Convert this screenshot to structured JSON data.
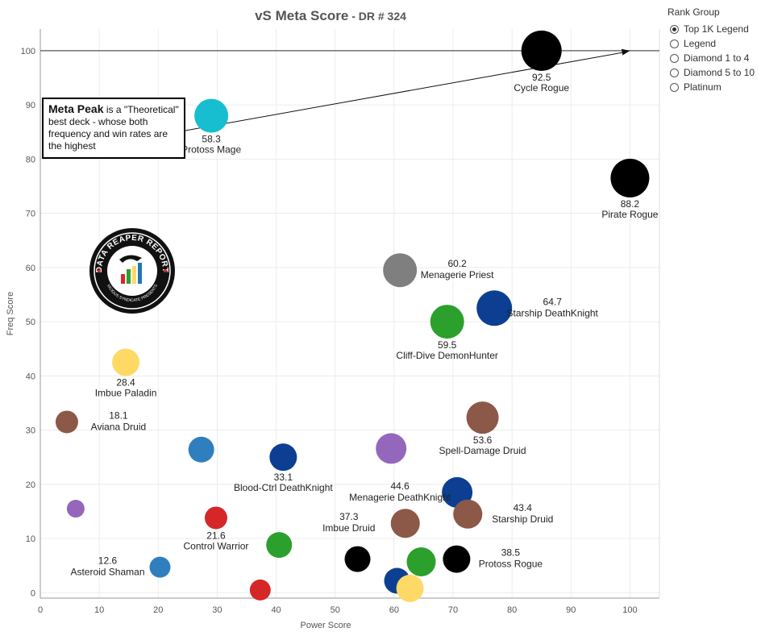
{
  "title": "vS Meta Score",
  "subtitle": "DR # 324",
  "legend": {
    "title": "Rank Group",
    "options": [
      {
        "label": "Top 1K Legend",
        "checked": true
      },
      {
        "label": "Legend",
        "checked": false
      },
      {
        "label": "Diamond 1 to 4",
        "checked": false
      },
      {
        "label": "Diamond 5 to 10",
        "checked": false
      },
      {
        "label": "Platinum",
        "checked": false
      }
    ]
  },
  "annotation": {
    "highlight": "Meta Peak",
    "text": " is a \"Theoretical\" best deck - whose both frequency and win rates are the highest"
  },
  "logo": {
    "top_text": "DATA REAPER REPORT",
    "bottom_text": "VICIOUS SYNDICATE PRESENTS"
  },
  "colors": {
    "black": "#000000",
    "brown": "#8c5848",
    "navy": "#0c3f91",
    "blue": "#2f7fbf",
    "cyan": "#17becf",
    "gray": "#7f7f7f",
    "green": "#2ca02c",
    "purple": "#9467bd",
    "yellow": "#ffd966",
    "red": "#d62728"
  },
  "chart_data": {
    "type": "scatter",
    "title": "vS Meta Score - DR # 324",
    "xlabel": "Power Score",
    "ylabel": "Freq Score",
    "xlim": [
      0,
      105
    ],
    "ylim": [
      -1,
      104
    ],
    "xticks": [
      0,
      10,
      20,
      30,
      40,
      50,
      60,
      70,
      80,
      90,
      100
    ],
    "yticks": [
      0,
      10,
      20,
      30,
      40,
      50,
      60,
      70,
      80,
      90,
      100
    ],
    "grid": true,
    "reference_line_y": 100,
    "meta_peak": {
      "x": 100,
      "y": 100
    },
    "points": [
      {
        "x": 85,
        "y": 100,
        "size": 25,
        "color": "black",
        "label": "Cycle Rogue",
        "score": "92.5",
        "pos": "below"
      },
      {
        "x": 100,
        "y": 76.5,
        "size": 24,
        "color": "black",
        "label": "Pirate Rogue",
        "score": "88.2",
        "pos": "below"
      },
      {
        "x": 29,
        "y": 88,
        "size": 21,
        "color": "cyan",
        "label": "Protoss Mage",
        "score": "58.3",
        "pos": "below"
      },
      {
        "x": 61,
        "y": 59.5,
        "size": 21,
        "color": "gray",
        "label": "Menagerie Priest",
        "score": "60.2",
        "pos": "right"
      },
      {
        "x": 77,
        "y": 52.5,
        "size": 22,
        "color": "navy",
        "label": "Starship DeathKnight",
        "score": "64.7",
        "pos": "right"
      },
      {
        "x": 69,
        "y": 50,
        "size": 21,
        "color": "green",
        "label": "Cliff-Dive DemonHunter",
        "score": "59.5",
        "pos": "below"
      },
      {
        "x": 14.5,
        "y": 42.5,
        "size": 17,
        "color": "yellow",
        "label": "Imbue Paladin",
        "score": "28.4",
        "pos": "below"
      },
      {
        "x": 4.5,
        "y": 31.5,
        "size": 14,
        "color": "brown",
        "label": "Aviana Druid",
        "score": "18.1",
        "pos": "right"
      },
      {
        "x": 75,
        "y": 32.3,
        "size": 20,
        "color": "brown",
        "label": "Spell-Damage Druid",
        "score": "53.6",
        "pos": "below"
      },
      {
        "x": 27.3,
        "y": 26.4,
        "size": 16,
        "color": "blue",
        "label": "",
        "score": "",
        "pos": "none"
      },
      {
        "x": 41.2,
        "y": 25,
        "size": 17,
        "color": "navy",
        "label": "Blood-Ctrl DeathKnight",
        "score": "33.1",
        "pos": "below"
      },
      {
        "x": 59.5,
        "y": 26.6,
        "size": 19,
        "color": "purple",
        "label": "",
        "score": "",
        "pos": "none"
      },
      {
        "x": 70.7,
        "y": 18.5,
        "size": 19,
        "color": "navy",
        "label": "Menagerie DeathKnight",
        "score": "44.6",
        "pos": "left"
      },
      {
        "x": 6,
        "y": 15.5,
        "size": 11,
        "color": "purple",
        "label": "",
        "score": "",
        "pos": "none"
      },
      {
        "x": 29.8,
        "y": 13.8,
        "size": 14,
        "color": "red",
        "label": "Control Warrior",
        "score": "21.6",
        "pos": "below"
      },
      {
        "x": 61.9,
        "y": 12.8,
        "size": 18,
        "color": "brown",
        "label": "Imbue Druid",
        "score": "37.3",
        "pos": "left"
      },
      {
        "x": 72.5,
        "y": 14.5,
        "size": 18,
        "color": "brown",
        "label": "Starship Druid",
        "score": "43.4",
        "pos": "right"
      },
      {
        "x": 40.5,
        "y": 8.8,
        "size": 16,
        "color": "green",
        "label": "",
        "score": "",
        "pos": "none"
      },
      {
        "x": 20.3,
        "y": 4.7,
        "size": 13,
        "color": "blue",
        "label": "Asteroid Shaman",
        "score": "12.6",
        "pos": "left"
      },
      {
        "x": 53.8,
        "y": 6.2,
        "size": 16,
        "color": "black",
        "label": "",
        "score": "",
        "pos": "none"
      },
      {
        "x": 70.6,
        "y": 6.2,
        "size": 17,
        "color": "black",
        "label": "Protoss Rogue",
        "score": "38.5",
        "pos": "right"
      },
      {
        "x": 64.6,
        "y": 5.7,
        "size": 18,
        "color": "green",
        "label": "",
        "score": "",
        "pos": "none"
      },
      {
        "x": 60.5,
        "y": 2.2,
        "size": 16,
        "color": "navy",
        "label": "",
        "score": "",
        "pos": "none"
      },
      {
        "x": 62.7,
        "y": 0.8,
        "size": 17,
        "color": "yellow",
        "label": "",
        "score": "",
        "pos": "none"
      },
      {
        "x": 37.3,
        "y": 0.5,
        "size": 13,
        "color": "red",
        "label": "",
        "score": "",
        "pos": "none"
      }
    ]
  }
}
